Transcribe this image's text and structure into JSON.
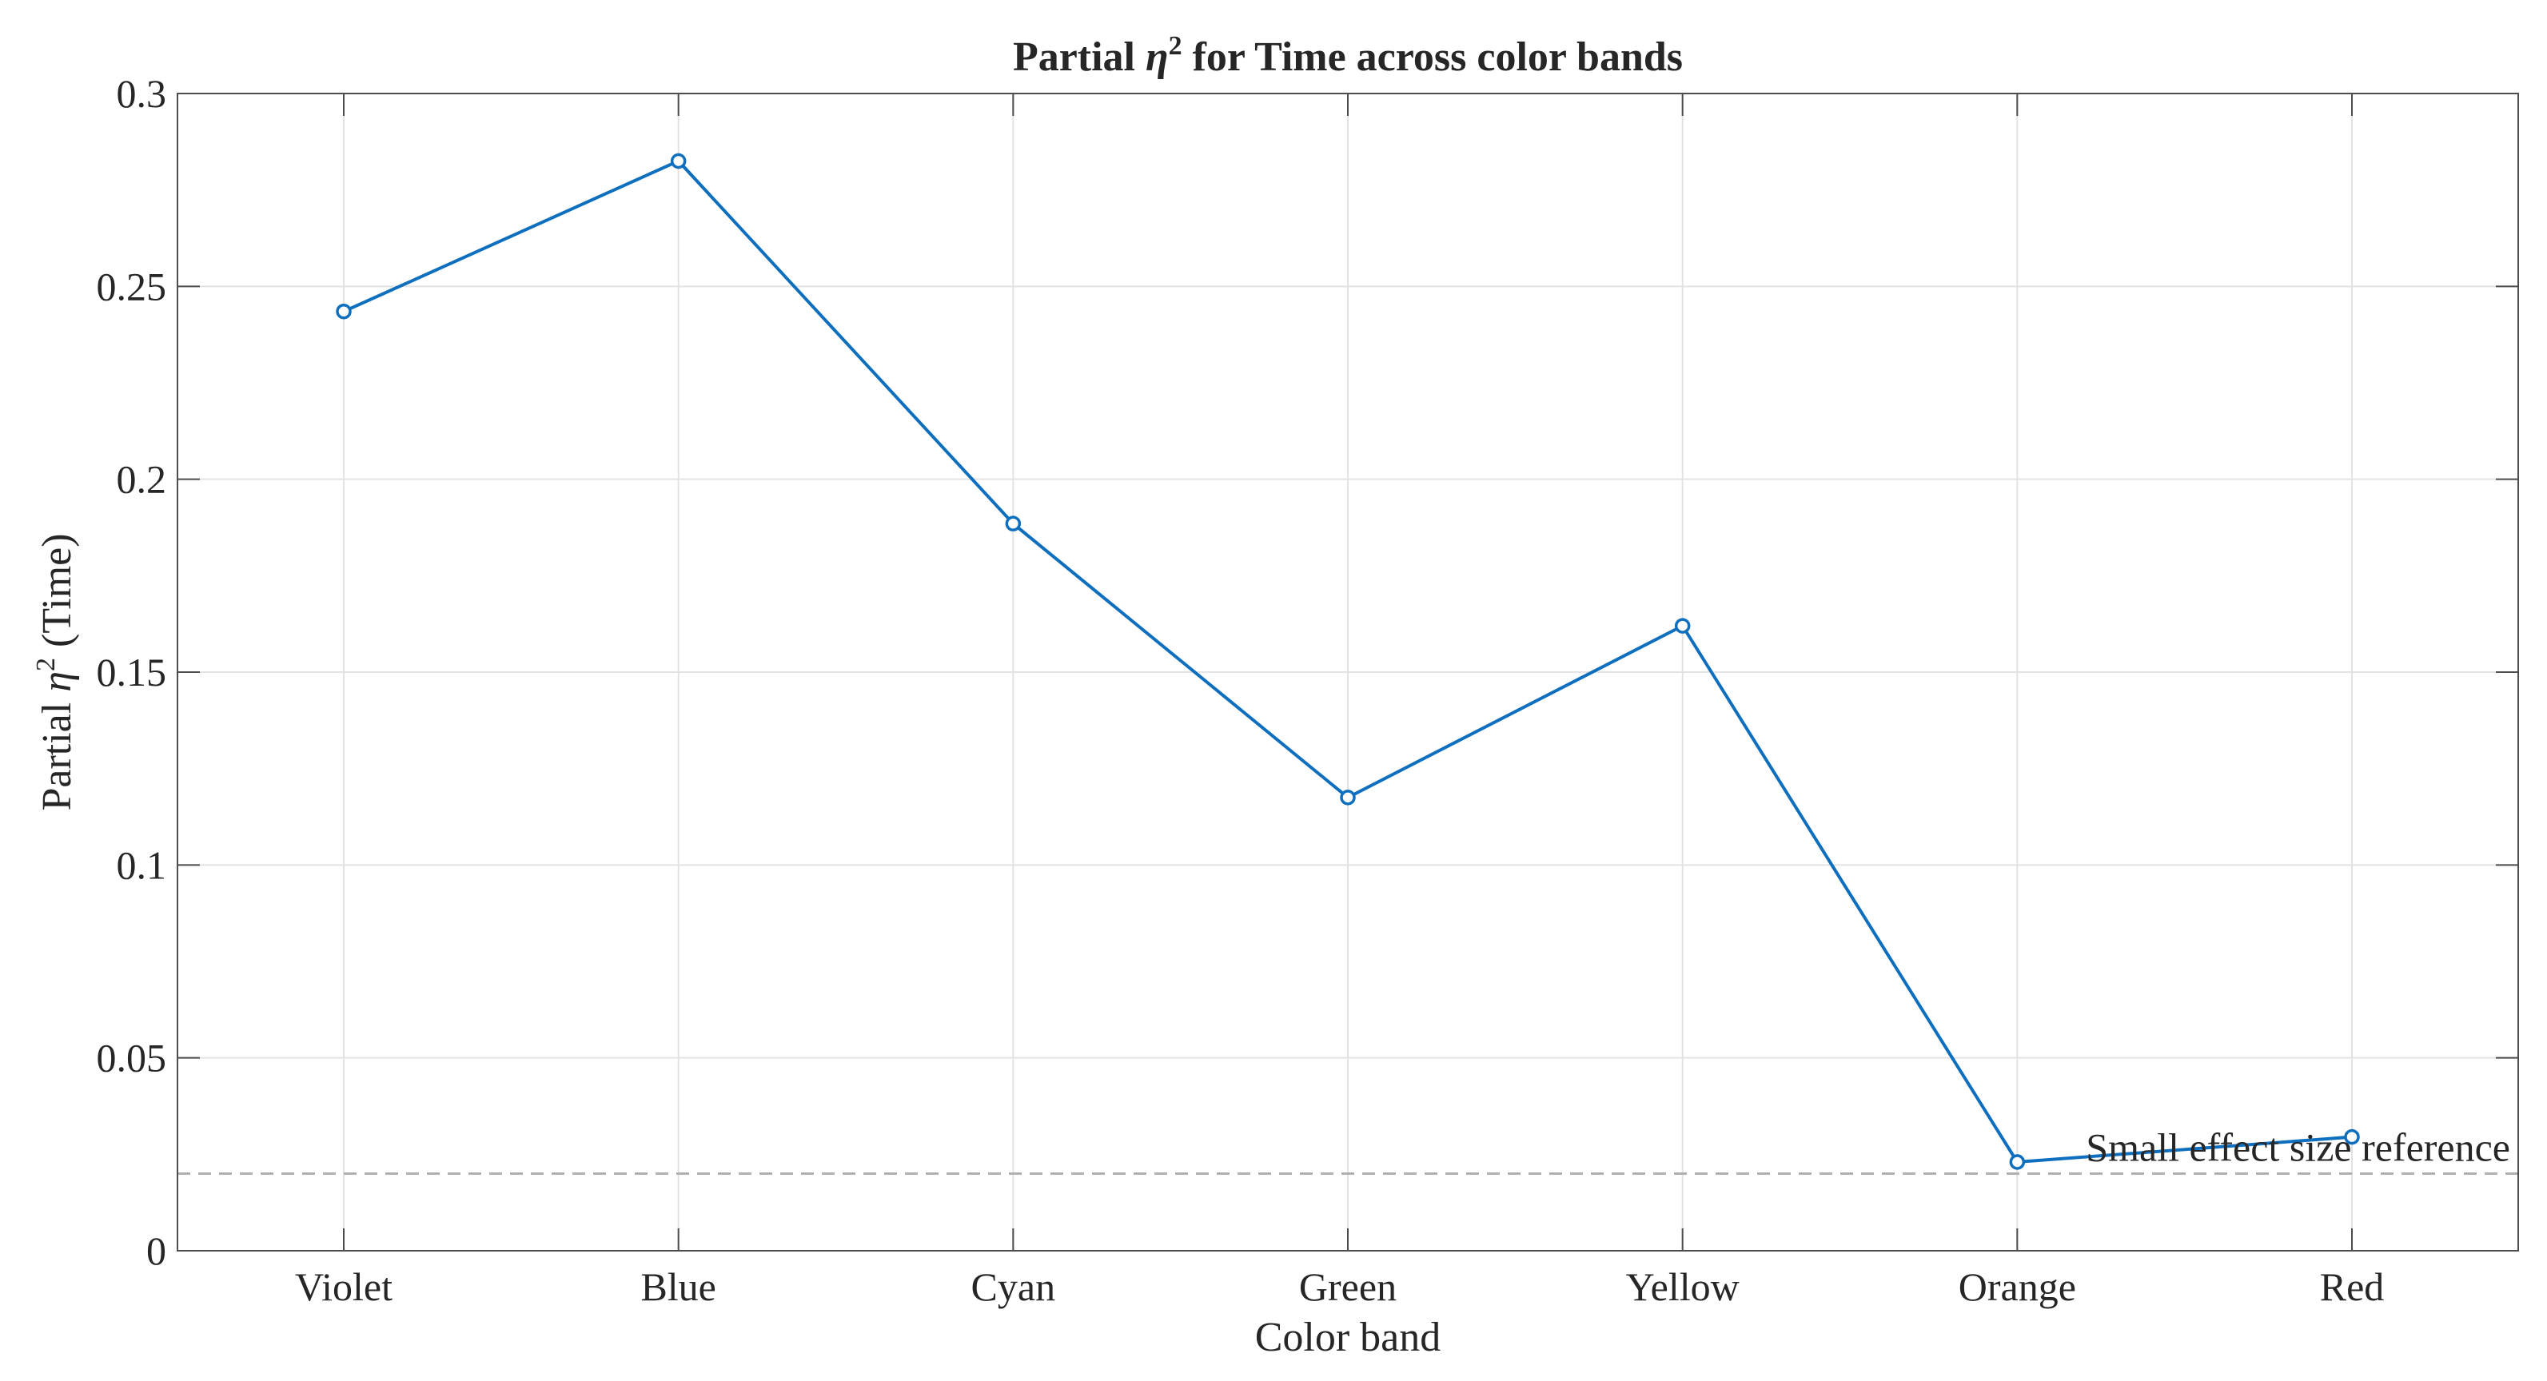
{
  "chart_data": {
    "type": "line",
    "title": {
      "pre": "Partial ",
      "eta": "η",
      "sup": "2",
      "post": " for Time across color bands"
    },
    "xlabel": "Color band",
    "ylabel": {
      "pre": "Partial ",
      "eta": "η",
      "sup": "2",
      "post": " (Time)"
    },
    "categories": [
      "Violet",
      "Blue",
      "Cyan",
      "Green",
      "Yellow",
      "Orange",
      "Red"
    ],
    "series": [
      {
        "values": [
          0.2435,
          0.2825,
          0.1885,
          0.1175,
          0.162,
          0.023,
          0.0295
        ],
        "color": "#0f6fbf"
      }
    ],
    "ylim": [
      0,
      0.3
    ],
    "yticks": [
      0,
      0.05,
      0.1,
      0.15,
      0.2,
      0.25,
      0.3
    ],
    "ytick_labels": [
      "0",
      "0.05",
      "0.1",
      "0.15",
      "0.2",
      "0.25",
      "0.3"
    ],
    "reference_line": {
      "y": 0.02,
      "label": "Small effect size reference",
      "color": "#b0b0b0",
      "style": "dashed"
    },
    "grid": true,
    "legend": "none"
  }
}
